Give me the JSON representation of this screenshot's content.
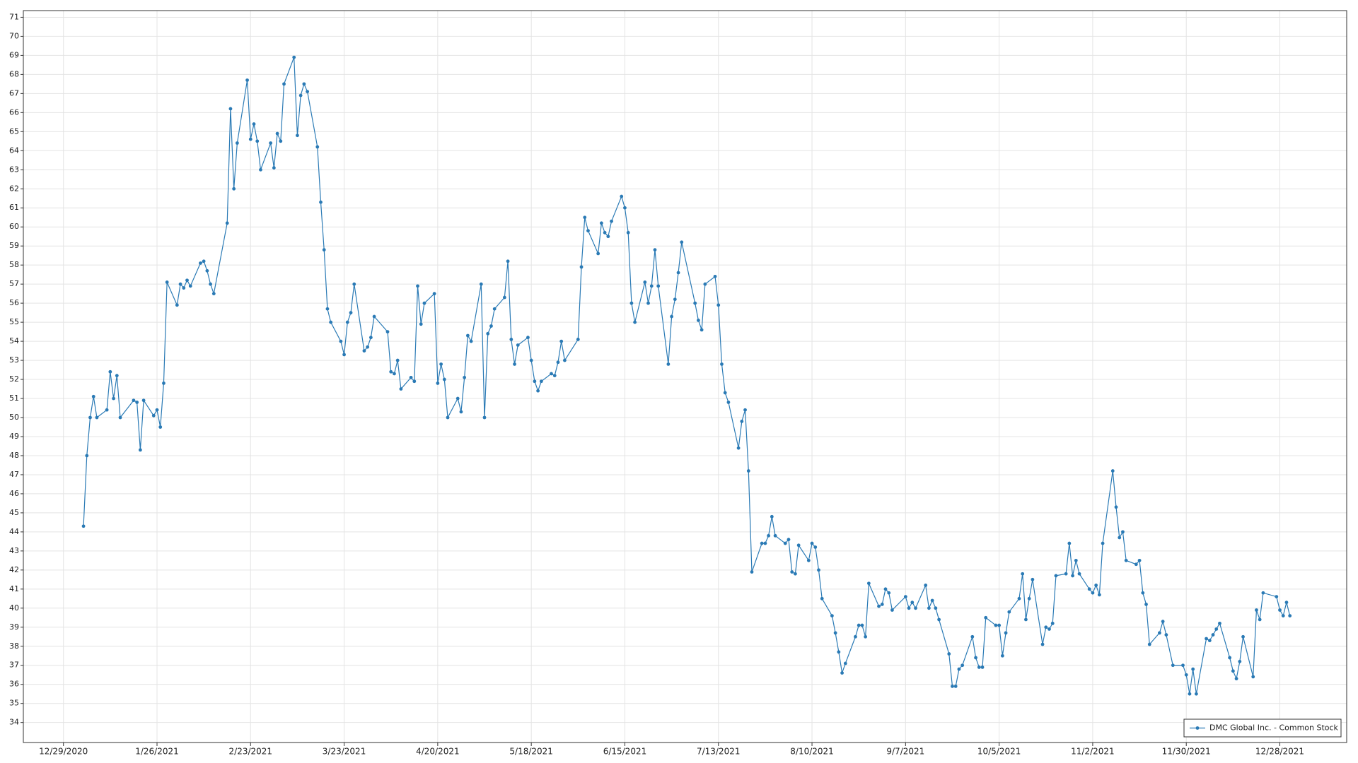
{
  "chart_data": {
    "type": "line",
    "x": [
      "2021-01-04",
      "2021-01-05",
      "2021-01-06",
      "2021-01-07",
      "2021-01-08",
      "2021-01-11",
      "2021-01-12",
      "2021-01-13",
      "2021-01-14",
      "2021-01-15",
      "2021-01-19",
      "2021-01-20",
      "2021-01-21",
      "2021-01-22",
      "2021-01-25",
      "2021-01-26",
      "2021-01-27",
      "2021-01-28",
      "2021-01-29",
      "2021-02-01",
      "2021-02-02",
      "2021-02-03",
      "2021-02-04",
      "2021-02-05",
      "2021-02-08",
      "2021-02-09",
      "2021-02-10",
      "2021-02-11",
      "2021-02-12",
      "2021-02-16",
      "2021-02-17",
      "2021-02-18",
      "2021-02-19",
      "2021-02-22",
      "2021-02-23",
      "2021-02-24",
      "2021-02-25",
      "2021-02-26",
      "2021-03-01",
      "2021-03-02",
      "2021-03-03",
      "2021-03-04",
      "2021-03-05",
      "2021-03-08",
      "2021-03-09",
      "2021-03-10",
      "2021-03-11",
      "2021-03-12",
      "2021-03-15",
      "2021-03-16",
      "2021-03-17",
      "2021-03-18",
      "2021-03-19",
      "2021-03-22",
      "2021-03-23",
      "2021-03-24",
      "2021-03-25",
      "2021-03-26",
      "2021-03-29",
      "2021-03-30",
      "2021-03-31",
      "2021-04-01",
      "2021-04-05",
      "2021-04-06",
      "2021-04-07",
      "2021-04-08",
      "2021-04-09",
      "2021-04-12",
      "2021-04-13",
      "2021-04-14",
      "2021-04-15",
      "2021-04-16",
      "2021-04-19",
      "2021-04-20",
      "2021-04-21",
      "2021-04-22",
      "2021-04-23",
      "2021-04-26",
      "2021-04-27",
      "2021-04-28",
      "2021-04-29",
      "2021-04-30",
      "2021-05-03",
      "2021-05-04",
      "2021-05-05",
      "2021-05-06",
      "2021-05-07",
      "2021-05-10",
      "2021-05-11",
      "2021-05-12",
      "2021-05-13",
      "2021-05-14",
      "2021-05-17",
      "2021-05-18",
      "2021-05-19",
      "2021-05-20",
      "2021-05-21",
      "2021-05-24",
      "2021-05-25",
      "2021-05-26",
      "2021-05-27",
      "2021-05-28",
      "2021-06-01",
      "2021-06-02",
      "2021-06-03",
      "2021-06-04",
      "2021-06-07",
      "2021-06-08",
      "2021-06-09",
      "2021-06-10",
      "2021-06-11",
      "2021-06-14",
      "2021-06-15",
      "2021-06-16",
      "2021-06-17",
      "2021-06-18",
      "2021-06-21",
      "2021-06-22",
      "2021-06-23",
      "2021-06-24",
      "2021-06-25",
      "2021-06-28",
      "2021-06-29",
      "2021-06-30",
      "2021-07-01",
      "2021-07-02",
      "2021-07-06",
      "2021-07-07",
      "2021-07-08",
      "2021-07-09",
      "2021-07-12",
      "2021-07-13",
      "2021-07-14",
      "2021-07-15",
      "2021-07-16",
      "2021-07-19",
      "2021-07-20",
      "2021-07-21",
      "2021-07-22",
      "2021-07-23",
      "2021-07-26",
      "2021-07-27",
      "2021-07-28",
      "2021-07-29",
      "2021-07-30",
      "2021-08-02",
      "2021-08-03",
      "2021-08-04",
      "2021-08-05",
      "2021-08-06",
      "2021-08-09",
      "2021-08-10",
      "2021-08-11",
      "2021-08-12",
      "2021-08-13",
      "2021-08-16",
      "2021-08-17",
      "2021-08-18",
      "2021-08-19",
      "2021-08-20",
      "2021-08-23",
      "2021-08-24",
      "2021-08-25",
      "2021-08-26",
      "2021-08-27",
      "2021-08-30",
      "2021-08-31",
      "2021-09-01",
      "2021-09-02",
      "2021-09-03",
      "2021-09-07",
      "2021-09-08",
      "2021-09-09",
      "2021-09-10",
      "2021-09-13",
      "2021-09-14",
      "2021-09-15",
      "2021-09-16",
      "2021-09-17",
      "2021-09-20",
      "2021-09-21",
      "2021-09-22",
      "2021-09-23",
      "2021-09-24",
      "2021-09-27",
      "2021-09-28",
      "2021-09-29",
      "2021-09-30",
      "2021-10-01",
      "2021-10-04",
      "2021-10-05",
      "2021-10-06",
      "2021-10-07",
      "2021-10-08",
      "2021-10-11",
      "2021-10-12",
      "2021-10-13",
      "2021-10-14",
      "2021-10-15",
      "2021-10-18",
      "2021-10-19",
      "2021-10-20",
      "2021-10-21",
      "2021-10-22",
      "2021-10-25",
      "2021-10-26",
      "2021-10-27",
      "2021-10-28",
      "2021-10-29",
      "2021-11-01",
      "2021-11-02",
      "2021-11-03",
      "2021-11-04",
      "2021-11-05",
      "2021-11-08",
      "2021-11-09",
      "2021-11-10",
      "2021-11-11",
      "2021-11-12",
      "2021-11-15",
      "2021-11-16",
      "2021-11-17",
      "2021-11-18",
      "2021-11-19",
      "2021-11-22",
      "2021-11-23",
      "2021-11-24",
      "2021-11-26",
      "2021-11-29",
      "2021-11-30",
      "2021-12-01",
      "2021-12-02",
      "2021-12-03",
      "2021-12-06",
      "2021-12-07",
      "2021-12-08",
      "2021-12-09",
      "2021-12-10",
      "2021-12-13",
      "2021-12-14",
      "2021-12-15",
      "2021-12-16",
      "2021-12-17",
      "2021-12-20",
      "2021-12-21",
      "2021-12-22",
      "2021-12-23",
      "2021-12-27",
      "2021-12-28",
      "2021-12-29",
      "2021-12-30",
      "2021-12-31"
    ],
    "series": [
      {
        "name": "DMC Global Inc. - Common Stock",
        "color": "#2a7ab5",
        "values": [
          44.3,
          48.0,
          50.0,
          51.1,
          50.0,
          50.4,
          52.4,
          51.0,
          52.2,
          50.0,
          50.9,
          50.8,
          48.3,
          50.9,
          50.1,
          50.4,
          49.5,
          51.8,
          57.1,
          55.9,
          57.0,
          56.8,
          57.2,
          56.9,
          58.1,
          58.2,
          57.7,
          57.0,
          56.5,
          60.2,
          66.2,
          62.0,
          64.4,
          67.7,
          64.6,
          65.4,
          64.5,
          63.0,
          64.4,
          63.1,
          64.9,
          64.5,
          67.5,
          68.9,
          64.8,
          66.9,
          67.5,
          67.1,
          64.2,
          61.3,
          58.8,
          55.7,
          55.0,
          54.0,
          53.3,
          55.0,
          55.5,
          57.0,
          53.5,
          53.7,
          54.2,
          55.3,
          54.5,
          52.4,
          52.3,
          53.0,
          51.5,
          52.1,
          51.9,
          56.9,
          54.9,
          56.0,
          56.5,
          51.8,
          52.8,
          52.0,
          50.0,
          51.0,
          50.3,
          52.1,
          54.3,
          54.0,
          57.0,
          50.0,
          54.4,
          54.8,
          55.7,
          56.3,
          58.2,
          54.1,
          52.8,
          53.8,
          54.2,
          53.0,
          51.9,
          51.4,
          51.9,
          52.3,
          52.2,
          52.9,
          54.0,
          53.0,
          54.1,
          57.9,
          60.5,
          59.8,
          58.6,
          60.2,
          59.7,
          59.5,
          60.3,
          61.6,
          61.0,
          59.7,
          56.0,
          55.0,
          57.1,
          56.0,
          56.9,
          58.8,
          56.9,
          52.8,
          55.3,
          56.2,
          57.6,
          59.2,
          56.0,
          55.1,
          54.6,
          57.0,
          57.4,
          55.9,
          52.8,
          51.3,
          50.8,
          48.4,
          49.8,
          50.4,
          47.2,
          41.9,
          43.4,
          43.4,
          43.8,
          44.8,
          43.8,
          43.4,
          43.6,
          41.9,
          41.8,
          43.3,
          42.5,
          43.4,
          43.2,
          42.0,
          40.5,
          39.6,
          38.7,
          37.7,
          36.6,
          37.1,
          38.5,
          39.1,
          39.1,
          38.5,
          41.3,
          40.1,
          40.2,
          41.0,
          40.8,
          39.9,
          40.6,
          40.0,
          40.3,
          40.0,
          41.2,
          40.0,
          40.4,
          40.0,
          39.4,
          37.6,
          35.9,
          35.9,
          36.8,
          37.0,
          38.5,
          37.4,
          36.9,
          36.9,
          39.5,
          39.1,
          39.1,
          37.5,
          38.7,
          39.8,
          40.5,
          41.8,
          39.4,
          40.5,
          41.5,
          38.1,
          39.0,
          38.9,
          39.2,
          41.7,
          41.8,
          43.4,
          41.7,
          42.5,
          41.8,
          41.0,
          40.8,
          41.2,
          40.7,
          43.4,
          47.2,
          45.3,
          43.7,
          44.0,
          42.5,
          42.3,
          42.5,
          40.8,
          40.2,
          38.1,
          38.7,
          39.3,
          38.6,
          37.0,
          37.0,
          36.5,
          35.5,
          36.8,
          35.5,
          38.4,
          38.3,
          38.6,
          38.9,
          39.2,
          37.4,
          36.7,
          36.3,
          37.2,
          38.5,
          36.4,
          39.9,
          39.4,
          40.8,
          40.6,
          39.9,
          39.6,
          40.3,
          39.6
        ]
      }
    ],
    "xlim": [
      "2020-12-17",
      "2022-01-17"
    ],
    "xticks": [
      {
        "value": "2020-12-29",
        "label": "12/29/2020"
      },
      {
        "value": "2021-01-26",
        "label": "1/26/2021"
      },
      {
        "value": "2021-02-23",
        "label": "2/23/2021"
      },
      {
        "value": "2021-03-23",
        "label": "3/23/2021"
      },
      {
        "value": "2021-04-20",
        "label": "4/20/2021"
      },
      {
        "value": "2021-05-18",
        "label": "5/18/2021"
      },
      {
        "value": "2021-06-15",
        "label": "6/15/2021"
      },
      {
        "value": "2021-07-13",
        "label": "7/13/2021"
      },
      {
        "value": "2021-08-10",
        "label": "8/10/2021"
      },
      {
        "value": "2021-09-07",
        "label": "9/7/2021"
      },
      {
        "value": "2021-10-05",
        "label": "10/5/2021"
      },
      {
        "value": "2021-11-02",
        "label": "11/2/2021"
      },
      {
        "value": "2021-11-30",
        "label": "11/30/2021"
      },
      {
        "value": "2021-12-28",
        "label": "12/28/2021"
      }
    ],
    "ylim": [
      32.95,
      71.35
    ],
    "yticks": [
      34,
      35,
      36,
      37,
      38,
      39,
      40,
      41,
      42,
      43,
      44,
      45,
      46,
      47,
      48,
      49,
      50,
      51,
      52,
      53,
      54,
      55,
      56,
      57,
      58,
      59,
      60,
      61,
      62,
      63,
      64,
      65,
      66,
      67,
      68,
      69,
      70,
      71
    ],
    "grid": true,
    "markers": true,
    "legend": "lower right"
  }
}
